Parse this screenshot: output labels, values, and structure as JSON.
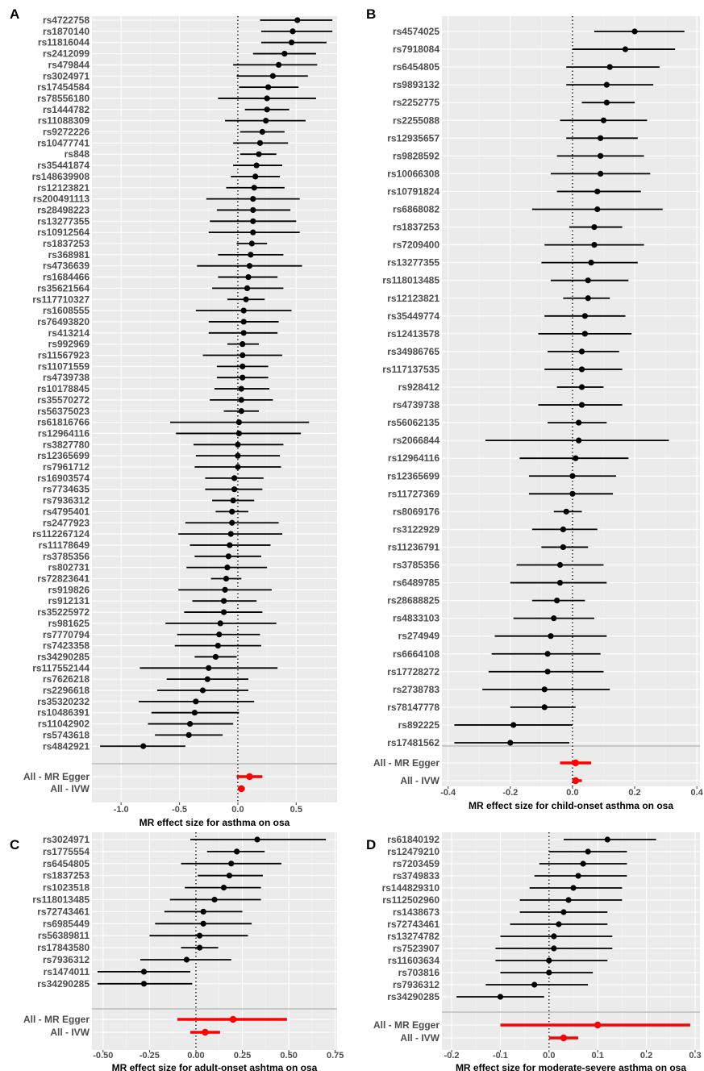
{
  "chart_data": [
    {
      "type": "scatter",
      "panel_label": "A",
      "xlabel": "MR effect size for asthma on osa",
      "xlim": [
        -1.25,
        0.85
      ],
      "xticks": [
        -1.0,
        -0.5,
        0.0,
        0.5
      ],
      "xtick_labels": [
        "-1.0",
        "-0.5",
        "0.0",
        "0.5"
      ],
      "snps": [
        {
          "label": "rs4722758",
          "x": 0.51,
          "lo": 0.19,
          "hi": 0.81
        },
        {
          "label": "rs1870140",
          "x": 0.47,
          "lo": 0.2,
          "hi": 0.81
        },
        {
          "label": "rs11816044",
          "x": 0.46,
          "lo": 0.2,
          "hi": 0.76
        },
        {
          "label": "rs2412099",
          "x": 0.4,
          "lo": 0.13,
          "hi": 0.67
        },
        {
          "label": "rs479844",
          "x": 0.35,
          "lo": -0.04,
          "hi": 0.68
        },
        {
          "label": "rs3024971",
          "x": 0.3,
          "lo": -0.01,
          "hi": 0.6
        },
        {
          "label": "rs17454584",
          "x": 0.26,
          "lo": 0.01,
          "hi": 0.52
        },
        {
          "label": "rs78556180",
          "x": 0.25,
          "lo": -0.17,
          "hi": 0.67
        },
        {
          "label": "rs1444782",
          "x": 0.25,
          "lo": 0.06,
          "hi": 0.44
        },
        {
          "label": "rs11088309",
          "x": 0.24,
          "lo": -0.11,
          "hi": 0.58
        },
        {
          "label": "rs9272226",
          "x": 0.21,
          "lo": 0.02,
          "hi": 0.4
        },
        {
          "label": "rs10477741",
          "x": 0.19,
          "lo": -0.04,
          "hi": 0.43
        },
        {
          "label": "rs848",
          "x": 0.18,
          "lo": 0.02,
          "hi": 0.33
        },
        {
          "label": "rs35441874",
          "x": 0.16,
          "lo": -0.04,
          "hi": 0.38
        },
        {
          "label": "rs148639908",
          "x": 0.15,
          "lo": -0.06,
          "hi": 0.36
        },
        {
          "label": "rs12123821",
          "x": 0.14,
          "lo": -0.1,
          "hi": 0.4
        },
        {
          "label": "rs200491113",
          "x": 0.13,
          "lo": -0.27,
          "hi": 0.53
        },
        {
          "label": "rs28498223",
          "x": 0.13,
          "lo": -0.18,
          "hi": 0.45
        },
        {
          "label": "rs13277355",
          "x": 0.13,
          "lo": -0.24,
          "hi": 0.5
        },
        {
          "label": "rs10912564",
          "x": 0.13,
          "lo": -0.25,
          "hi": 0.53
        },
        {
          "label": "rs1837253",
          "x": 0.12,
          "lo": -0.01,
          "hi": 0.25
        },
        {
          "label": "rs368981",
          "x": 0.11,
          "lo": -0.17,
          "hi": 0.39
        },
        {
          "label": "rs4736639",
          "x": 0.1,
          "lo": -0.35,
          "hi": 0.55
        },
        {
          "label": "rs1684466",
          "x": 0.09,
          "lo": -0.17,
          "hi": 0.34
        },
        {
          "label": "rs35621564",
          "x": 0.08,
          "lo": -0.22,
          "hi": 0.39
        },
        {
          "label": "rs117710327",
          "x": 0.07,
          "lo": -0.09,
          "hi": 0.23
        },
        {
          "label": "rs1608555",
          "x": 0.05,
          "lo": -0.36,
          "hi": 0.46
        },
        {
          "label": "rs76493820",
          "x": 0.05,
          "lo": -0.25,
          "hi": 0.35
        },
        {
          "label": "rs413214",
          "x": 0.05,
          "lo": -0.25,
          "hi": 0.34
        },
        {
          "label": "rs992969",
          "x": 0.04,
          "lo": -0.09,
          "hi": 0.18
        },
        {
          "label": "rs11567923",
          "x": 0.04,
          "lo": -0.3,
          "hi": 0.38
        },
        {
          "label": "rs11071559",
          "x": 0.04,
          "lo": -0.18,
          "hi": 0.26
        },
        {
          "label": "rs4739738",
          "x": 0.04,
          "lo": -0.18,
          "hi": 0.26
        },
        {
          "label": "rs10178845",
          "x": 0.03,
          "lo": -0.2,
          "hi": 0.27
        },
        {
          "label": "rs35570272",
          "x": 0.03,
          "lo": -0.24,
          "hi": 0.3
        },
        {
          "label": "rs56375023",
          "x": 0.03,
          "lo": -0.12,
          "hi": 0.18
        },
        {
          "label": "rs61816766",
          "x": 0.01,
          "lo": -0.58,
          "hi": 0.61
        },
        {
          "label": "rs12964116",
          "x": 0.01,
          "lo": -0.53,
          "hi": 0.54
        },
        {
          "label": "rs3827780",
          "x": 0.0,
          "lo": -0.38,
          "hi": 0.39
        },
        {
          "label": "rs12365699",
          "x": 0.0,
          "lo": -0.36,
          "hi": 0.36
        },
        {
          "label": "rs7961712",
          "x": 0.0,
          "lo": -0.37,
          "hi": 0.37
        },
        {
          "label": "rs16903574",
          "x": -0.03,
          "lo": -0.28,
          "hi": 0.22
        },
        {
          "label": "rs7734635",
          "x": -0.03,
          "lo": -0.28,
          "hi": 0.21
        },
        {
          "label": "rs7936312",
          "x": -0.04,
          "lo": -0.22,
          "hi": 0.14
        },
        {
          "label": "rs4795401",
          "x": -0.05,
          "lo": -0.19,
          "hi": 0.09
        },
        {
          "label": "rs2477923",
          "x": -0.05,
          "lo": -0.45,
          "hi": 0.35
        },
        {
          "label": "rs112267124",
          "x": -0.06,
          "lo": -0.51,
          "hi": 0.38
        },
        {
          "label": "rs11178649",
          "x": -0.07,
          "lo": -0.41,
          "hi": 0.28
        },
        {
          "label": "rs3785356",
          "x": -0.08,
          "lo": -0.37,
          "hi": 0.2
        },
        {
          "label": "rs802731",
          "x": -0.09,
          "lo": -0.44,
          "hi": 0.25
        },
        {
          "label": "rs72823641",
          "x": -0.1,
          "lo": -0.23,
          "hi": 0.03
        },
        {
          "label": "rs919826",
          "x": -0.11,
          "lo": -0.51,
          "hi": 0.29
        },
        {
          "label": "rs912131",
          "x": -0.12,
          "lo": -0.39,
          "hi": 0.16
        },
        {
          "label": "rs35225972",
          "x": -0.12,
          "lo": -0.46,
          "hi": 0.21
        },
        {
          "label": "rs981625",
          "x": -0.15,
          "lo": -0.62,
          "hi": 0.33
        },
        {
          "label": "rs7770794",
          "x": -0.16,
          "lo": -0.52,
          "hi": 0.19
        },
        {
          "label": "rs7423358",
          "x": -0.17,
          "lo": -0.54,
          "hi": 0.2
        },
        {
          "label": "rs34290285",
          "x": -0.19,
          "lo": -0.37,
          "hi": -0.01
        },
        {
          "label": "rs117552144",
          "x": -0.25,
          "lo": -0.84,
          "hi": 0.34
        },
        {
          "label": "rs7626218",
          "x": -0.26,
          "lo": -0.61,
          "hi": 0.09
        },
        {
          "label": "rs2296618",
          "x": -0.3,
          "lo": -0.69,
          "hi": 0.09
        },
        {
          "label": "rs35320232",
          "x": -0.36,
          "lo": -0.85,
          "hi": 0.14
        },
        {
          "label": "rs10486391",
          "x": -0.37,
          "lo": -0.74,
          "hi": 0.01
        },
        {
          "label": "rs11042902",
          "x": -0.41,
          "lo": -0.77,
          "hi": -0.04
        },
        {
          "label": "rs5743618",
          "x": -0.42,
          "lo": -0.71,
          "hi": -0.13
        },
        {
          "label": "rs4842921",
          "x": -0.81,
          "lo": -1.18,
          "hi": -0.45
        }
      ],
      "summary": [
        {
          "label": "All - MR Egger",
          "x": 0.1,
          "lo": -0.01,
          "hi": 0.21
        },
        {
          "label": "All - IVW",
          "x": 0.03,
          "lo": 0.0,
          "hi": 0.06
        }
      ]
    },
    {
      "type": "scatter",
      "panel_label": "B",
      "xlabel": "MR effect size for child-onset asthma on osa",
      "xlim": [
        -0.42,
        0.41
      ],
      "xticks": [
        -0.4,
        -0.2,
        0.0,
        0.2,
        0.4
      ],
      "xtick_labels": [
        "-0.4",
        "-0.2",
        "0.0",
        "0.2",
        "0.4"
      ],
      "snps": [
        {
          "label": "rs4574025",
          "x": 0.2,
          "lo": 0.07,
          "hi": 0.36
        },
        {
          "label": "rs7918084",
          "x": 0.17,
          "lo": 0.0,
          "hi": 0.33
        },
        {
          "label": "rs6454805",
          "x": 0.12,
          "lo": -0.02,
          "hi": 0.28
        },
        {
          "label": "rs9893132",
          "x": 0.11,
          "lo": -0.02,
          "hi": 0.26
        },
        {
          "label": "rs2252775",
          "x": 0.11,
          "lo": 0.03,
          "hi": 0.2
        },
        {
          "label": "rs2255088",
          "x": 0.1,
          "lo": -0.04,
          "hi": 0.24
        },
        {
          "label": "rs12935657",
          "x": 0.09,
          "lo": -0.02,
          "hi": 0.21
        },
        {
          "label": "rs9828592",
          "x": 0.09,
          "lo": -0.05,
          "hi": 0.23
        },
        {
          "label": "rs10066308",
          "x": 0.09,
          "lo": -0.07,
          "hi": 0.25
        },
        {
          "label": "rs10791824",
          "x": 0.08,
          "lo": -0.05,
          "hi": 0.22
        },
        {
          "label": "rs6868082",
          "x": 0.08,
          "lo": -0.13,
          "hi": 0.29
        },
        {
          "label": "rs1837253",
          "x": 0.07,
          "lo": -0.01,
          "hi": 0.16
        },
        {
          "label": "rs7209400",
          "x": 0.07,
          "lo": -0.09,
          "hi": 0.23
        },
        {
          "label": "rs13277355",
          "x": 0.06,
          "lo": -0.1,
          "hi": 0.21
        },
        {
          "label": "rs118013485",
          "x": 0.05,
          "lo": -0.07,
          "hi": 0.18
        },
        {
          "label": "rs12123821",
          "x": 0.05,
          "lo": -0.03,
          "hi": 0.12
        },
        {
          "label": "rs35449774",
          "x": 0.04,
          "lo": -0.09,
          "hi": 0.17
        },
        {
          "label": "rs12413578",
          "x": 0.04,
          "lo": -0.11,
          "hi": 0.19
        },
        {
          "label": "rs34986765",
          "x": 0.03,
          "lo": -0.08,
          "hi": 0.15
        },
        {
          "label": "rs117137535",
          "x": 0.03,
          "lo": -0.09,
          "hi": 0.16
        },
        {
          "label": "rs928412",
          "x": 0.03,
          "lo": -0.05,
          "hi": 0.1
        },
        {
          "label": "rs4739738",
          "x": 0.03,
          "lo": -0.11,
          "hi": 0.16
        },
        {
          "label": "rs56062135",
          "x": 0.02,
          "lo": -0.08,
          "hi": 0.11
        },
        {
          "label": "rs2066844",
          "x": 0.02,
          "lo": -0.28,
          "hi": 0.31
        },
        {
          "label": "rs12964116",
          "x": 0.01,
          "lo": -0.17,
          "hi": 0.18
        },
        {
          "label": "rs12365699",
          "x": 0.0,
          "lo": -0.14,
          "hi": 0.14
        },
        {
          "label": "rs11727369",
          "x": 0.0,
          "lo": -0.14,
          "hi": 0.13
        },
        {
          "label": "rs8069176",
          "x": -0.02,
          "lo": -0.06,
          "hi": 0.03
        },
        {
          "label": "rs3122929",
          "x": -0.03,
          "lo": -0.13,
          "hi": 0.08
        },
        {
          "label": "rs11236791",
          "x": -0.03,
          "lo": -0.1,
          "hi": 0.05
        },
        {
          "label": "rs3785356",
          "x": -0.04,
          "lo": -0.18,
          "hi": 0.1
        },
        {
          "label": "rs6489785",
          "x": -0.04,
          "lo": -0.2,
          "hi": 0.11
        },
        {
          "label": "rs28688825",
          "x": -0.05,
          "lo": -0.13,
          "hi": 0.04
        },
        {
          "label": "rs4833103",
          "x": -0.06,
          "lo": -0.19,
          "hi": 0.07
        },
        {
          "label": "rs274949",
          "x": -0.07,
          "lo": -0.25,
          "hi": 0.11
        },
        {
          "label": "rs6664108",
          "x": -0.08,
          "lo": -0.26,
          "hi": 0.09
        },
        {
          "label": "rs17728272",
          "x": -0.08,
          "lo": -0.27,
          "hi": 0.1
        },
        {
          "label": "rs2738783",
          "x": -0.09,
          "lo": -0.29,
          "hi": 0.12
        },
        {
          "label": "rs78147778",
          "x": -0.09,
          "lo": -0.2,
          "hi": 0.01
        },
        {
          "label": "rs892225",
          "x": -0.19,
          "lo": -0.38,
          "hi": 0.0
        },
        {
          "label": "rs17481562",
          "x": -0.2,
          "lo": -0.38,
          "hi": -0.01
        }
      ],
      "summary": [
        {
          "label": "All - MR Egger",
          "x": 0.01,
          "lo": -0.04,
          "hi": 0.06
        },
        {
          "label": "All - IVW",
          "x": 0.01,
          "lo": 0.0,
          "hi": 0.03
        }
      ]
    },
    {
      "type": "scatter",
      "panel_label": "C",
      "xlabel": "MR effect size for adult-onset ashtma on osa",
      "xlim": [
        -0.56,
        0.76
      ],
      "xticks": [
        -0.5,
        -0.25,
        0.0,
        0.25,
        0.5,
        0.75
      ],
      "xtick_labels": [
        "-0.50",
        "-0.25",
        "0.00",
        "0.25",
        "0.50",
        "0.75"
      ],
      "snps": [
        {
          "label": "rs3024971",
          "x": 0.33,
          "lo": -0.03,
          "hi": 0.7
        },
        {
          "label": "rs1775554",
          "x": 0.22,
          "lo": 0.06,
          "hi": 0.37
        },
        {
          "label": "rs6454805",
          "x": 0.19,
          "lo": -0.08,
          "hi": 0.46
        },
        {
          "label": "rs1837253",
          "x": 0.18,
          "lo": 0.01,
          "hi": 0.36
        },
        {
          "label": "rs1023518",
          "x": 0.15,
          "lo": -0.06,
          "hi": 0.35
        },
        {
          "label": "rs118013485",
          "x": 0.1,
          "lo": -0.14,
          "hi": 0.35
        },
        {
          "label": "rs72743461",
          "x": 0.04,
          "lo": -0.17,
          "hi": 0.25
        },
        {
          "label": "rs6985449",
          "x": 0.04,
          "lo": -0.22,
          "hi": 0.3
        },
        {
          "label": "rs56389811",
          "x": 0.02,
          "lo": -0.25,
          "hi": 0.28
        },
        {
          "label": "rs17843580",
          "x": 0.02,
          "lo": -0.08,
          "hi": 0.12
        },
        {
          "label": "rs7936312",
          "x": -0.05,
          "lo": -0.3,
          "hi": 0.19
        },
        {
          "label": "rs1474011",
          "x": -0.28,
          "lo": -0.53,
          "hi": -0.03
        },
        {
          "label": "rs34290285",
          "x": -0.28,
          "lo": -0.53,
          "hi": -0.02
        }
      ],
      "summary": [
        {
          "label": "All - MR Egger",
          "x": 0.2,
          "lo": -0.1,
          "hi": 0.49
        },
        {
          "label": "All - IVW",
          "x": 0.05,
          "lo": -0.03,
          "hi": 0.13
        }
      ]
    },
    {
      "type": "scatter",
      "panel_label": "D",
      "xlabel": "MR effect size for moderate-severe asthma on osa",
      "xlim": [
        -0.22,
        0.31
      ],
      "xticks": [
        -0.2,
        -0.1,
        0.0,
        0.1,
        0.2,
        0.3
      ],
      "xtick_labels": [
        "-0.2",
        "-0.1",
        "0.0",
        "0.1",
        "0.2",
        "0.3"
      ],
      "snps": [
        {
          "label": "rs61840192",
          "x": 0.12,
          "lo": 0.03,
          "hi": 0.22
        },
        {
          "label": "rs12479210",
          "x": 0.08,
          "lo": 0.0,
          "hi": 0.16
        },
        {
          "label": "rs7203459",
          "x": 0.07,
          "lo": -0.02,
          "hi": 0.16
        },
        {
          "label": "rs3749833",
          "x": 0.06,
          "lo": -0.03,
          "hi": 0.16
        },
        {
          "label": "rs144829310",
          "x": 0.05,
          "lo": -0.04,
          "hi": 0.15
        },
        {
          "label": "rs112502960",
          "x": 0.04,
          "lo": -0.06,
          "hi": 0.15
        },
        {
          "label": "rs1438673",
          "x": 0.03,
          "lo": -0.06,
          "hi": 0.12
        },
        {
          "label": "rs72743461",
          "x": 0.02,
          "lo": -0.08,
          "hi": 0.12
        },
        {
          "label": "rs13274782",
          "x": 0.01,
          "lo": -0.1,
          "hi": 0.13
        },
        {
          "label": "rs7523907",
          "x": 0.01,
          "lo": -0.11,
          "hi": 0.13
        },
        {
          "label": "rs11603634",
          "x": 0.0,
          "lo": -0.11,
          "hi": 0.12
        },
        {
          "label": "rs703816",
          "x": 0.0,
          "lo": -0.1,
          "hi": 0.09
        },
        {
          "label": "rs7936312",
          "x": -0.03,
          "lo": -0.13,
          "hi": 0.08
        },
        {
          "label": "rs34290285",
          "x": -0.1,
          "lo": -0.19,
          "hi": -0.01
        }
      ],
      "summary": [
        {
          "label": "All - MR Egger",
          "x": 0.1,
          "lo": -0.1,
          "hi": 0.29
        },
        {
          "label": "All - IVW",
          "x": 0.03,
          "lo": 0.0,
          "hi": 0.06
        }
      ]
    }
  ],
  "colors": {
    "point": "#000000",
    "summary": "#ff0000",
    "separator": "#bdbdbd",
    "zero_line": "#000000",
    "panel_bg": "#ebebeb"
  }
}
